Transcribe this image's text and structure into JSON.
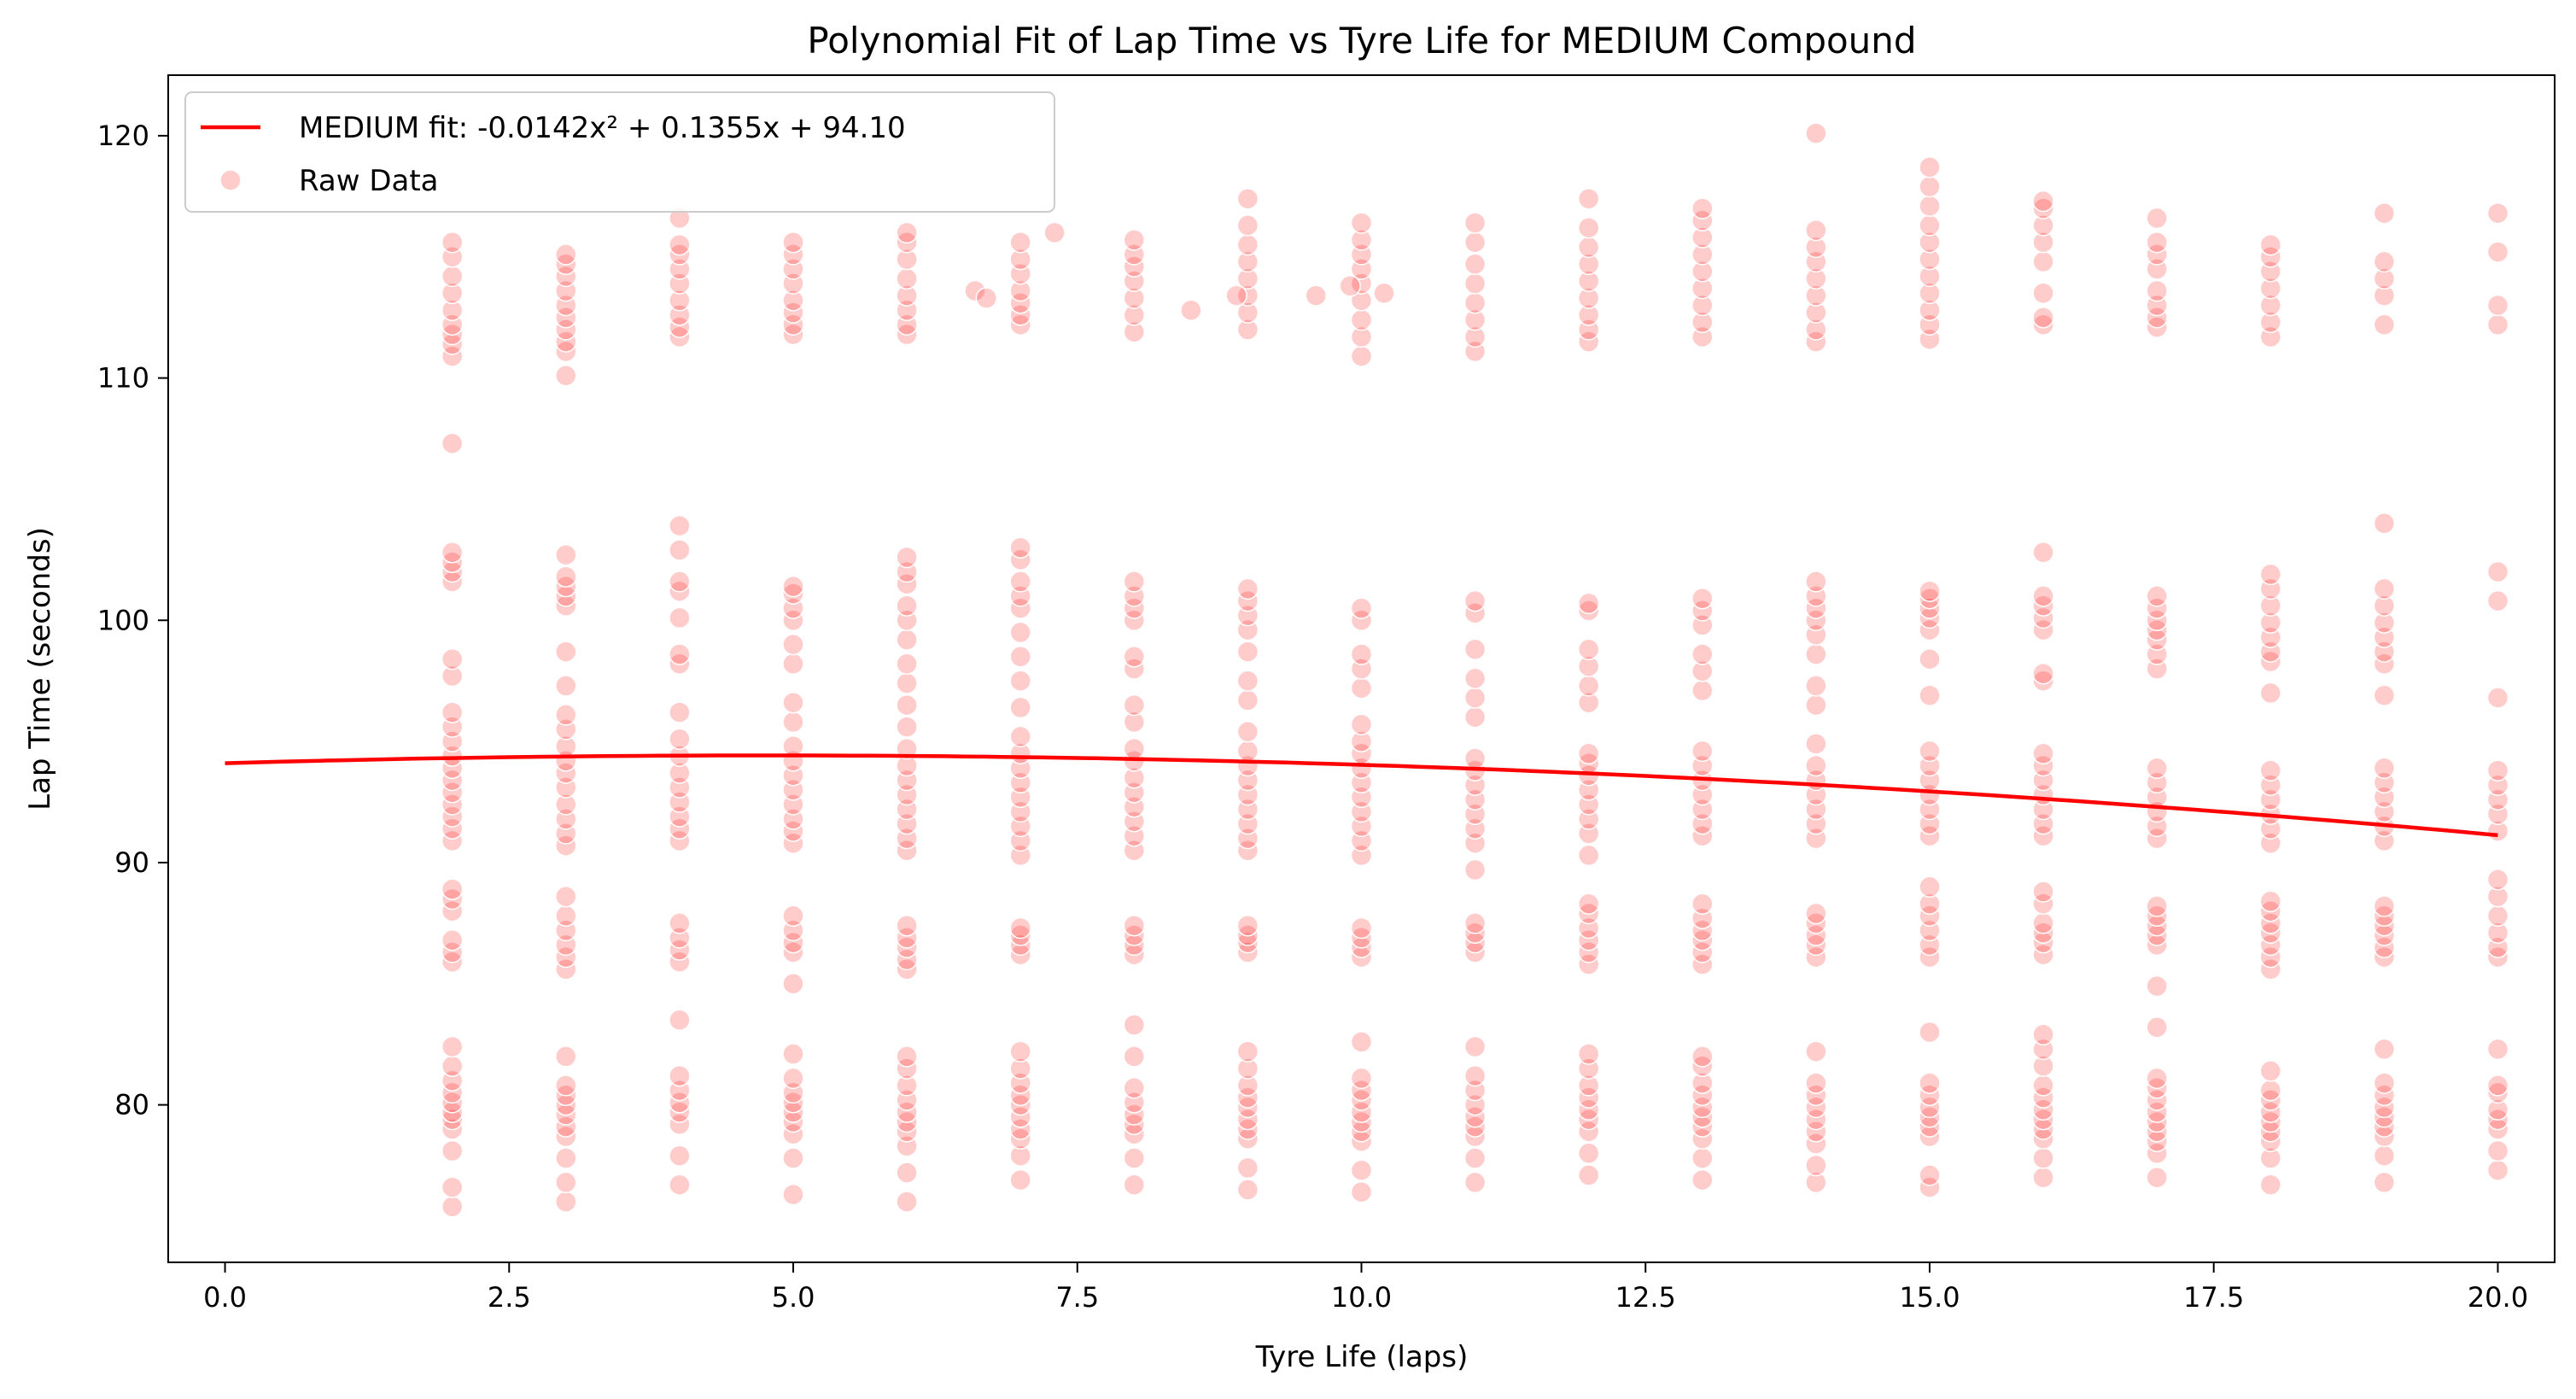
{
  "chart_data": {
    "type": "scatter",
    "title": "Polynomial Fit of Lap Time vs Tyre Life for MEDIUM Compound",
    "xlabel": "Tyre Life (laps)",
    "ylabel": "Lap Time (seconds)",
    "xlim": [
      -0.5,
      20.5
    ],
    "ylim": [
      73.5,
      122.5
    ],
    "xticks": [
      0.0,
      2.5,
      5.0,
      7.5,
      10.0,
      12.5,
      15.0,
      17.5,
      20.0
    ],
    "xtick_labels": [
      "0.0",
      "2.5",
      "5.0",
      "7.5",
      "10.0",
      "12.5",
      "15.0",
      "17.5",
      "20.0"
    ],
    "yticks": [
      80,
      90,
      100,
      110,
      120
    ],
    "ytick_labels": [
      "80",
      "90",
      "100",
      "110",
      "120"
    ],
    "grid": false,
    "legend_position": "top-left",
    "colors": {
      "fit": "#ff0000",
      "raw": "#ff0000"
    },
    "fit": {
      "name": "MEDIUM fit: -0.0142x² + 0.1355x + 94.10",
      "coefficients": [
        -0.0142,
        0.1355,
        94.1
      ],
      "x_range": [
        0,
        20
      ]
    },
    "raw": {
      "name": "Raw Data",
      "columns": [
        {
          "x": 2,
          "y": [
            75.8,
            76.6,
            78.1,
            79.0,
            79.4,
            79.7,
            80.1,
            80.5,
            81.0,
            81.6,
            82.4,
            85.9,
            86.3,
            86.8,
            88.0,
            88.5,
            88.9,
            90.9,
            91.4,
            91.9,
            92.4,
            92.9,
            93.4,
            93.9,
            94.4,
            95.0,
            95.6,
            96.2,
            97.7,
            98.4,
            101.6,
            102.0,
            102.4,
            102.8,
            107.3,
            110.9,
            111.4,
            111.8,
            112.2,
            112.8,
            113.5,
            114.2,
            115.0,
            115.6
          ]
        },
        {
          "x": 3,
          "y": [
            76.0,
            76.8,
            77.8,
            78.7,
            79.1,
            79.6,
            80.0,
            80.4,
            80.8,
            82.0,
            85.6,
            86.1,
            86.6,
            87.2,
            87.8,
            88.6,
            90.7,
            91.2,
            91.8,
            92.4,
            93.1,
            93.7,
            94.2,
            94.8,
            95.5,
            96.1,
            97.3,
            98.7,
            100.6,
            101.0,
            101.4,
            101.8,
            102.7,
            110.1,
            111.1,
            111.5,
            112.0,
            112.5,
            113.0,
            113.6,
            114.2,
            114.7,
            115.1
          ]
        },
        {
          "x": 4,
          "y": [
            76.7,
            77.9,
            79.2,
            79.7,
            80.1,
            80.6,
            81.2,
            83.5,
            85.9,
            86.4,
            86.9,
            87.5,
            90.9,
            91.4,
            91.9,
            92.5,
            93.1,
            93.7,
            94.4,
            95.1,
            96.2,
            98.2,
            98.6,
            100.1,
            101.2,
            101.6,
            102.9,
            103.9,
            111.7,
            112.1,
            112.6,
            113.2,
            113.9,
            114.5,
            115.1,
            115.5,
            116.6
          ]
        },
        {
          "x": 5,
          "y": [
            76.3,
            77.8,
            78.8,
            79.3,
            79.7,
            80.1,
            80.5,
            81.1,
            82.1,
            85.0,
            86.3,
            86.7,
            87.2,
            87.8,
            90.8,
            91.3,
            91.8,
            92.4,
            93.0,
            93.6,
            94.2,
            94.8,
            95.8,
            96.6,
            98.2,
            99.0,
            100.0,
            100.5,
            101.1,
            101.4,
            111.8,
            112.2,
            112.7,
            113.2,
            113.9,
            114.5,
            115.1,
            115.6
          ]
        },
        {
          "x": 6,
          "y": [
            76.0,
            77.2,
            78.3,
            78.9,
            79.3,
            79.7,
            80.2,
            80.8,
            81.5,
            82.0,
            85.6,
            86.0,
            86.5,
            86.9,
            87.4,
            90.5,
            91.0,
            91.6,
            92.2,
            92.8,
            93.4,
            94.0,
            94.7,
            95.6,
            96.5,
            97.4,
            98.2,
            99.2,
            100.0,
            100.6,
            101.5,
            102.0,
            102.6,
            111.8,
            112.2,
            112.8,
            113.4,
            114.1,
            114.9,
            115.6,
            116.0
          ]
        },
        {
          "x": 7,
          "y": [
            76.9,
            77.9,
            78.6,
            79.0,
            79.5,
            80.0,
            80.4,
            80.9,
            81.5,
            82.2,
            86.2,
            86.6,
            87.0,
            87.3,
            90.3,
            90.9,
            91.5,
            92.1,
            92.7,
            93.3,
            93.9,
            94.5,
            95.2,
            96.4,
            97.5,
            98.5,
            99.5,
            100.5,
            101.0,
            101.6,
            102.5,
            103.0,
            112.2,
            112.6,
            113.1,
            113.6,
            114.3,
            114.9,
            115.6
          ]
        },
        {
          "x": 8,
          "y": [
            76.7,
            77.8,
            78.8,
            79.2,
            79.6,
            80.1,
            80.7,
            82.0,
            83.3,
            86.2,
            86.6,
            87.0,
            87.4,
            90.5,
            91.1,
            91.7,
            92.3,
            92.9,
            93.5,
            94.2,
            94.7,
            95.8,
            96.5,
            98.0,
            98.5,
            100.0,
            100.5,
            101.0,
            101.6,
            111.9,
            112.6,
            113.3,
            114.0,
            114.6,
            115.1,
            115.7
          ]
        },
        {
          "x": 9,
          "y": [
            76.5,
            77.4,
            78.6,
            79.0,
            79.4,
            79.9,
            80.3,
            80.8,
            81.5,
            82.2,
            86.3,
            86.7,
            87.0,
            87.4,
            90.5,
            91.0,
            91.6,
            92.2,
            92.8,
            93.4,
            94.0,
            94.6,
            95.4,
            96.7,
            97.5,
            98.7,
            99.6,
            100.2,
            100.8,
            101.3,
            112.0,
            112.7,
            113.4,
            114.1,
            114.8,
            115.5,
            116.3,
            117.4
          ]
        },
        {
          "x": 10,
          "y": [
            76.4,
            77.3,
            78.5,
            78.9,
            79.3,
            79.7,
            80.2,
            80.6,
            81.1,
            82.6,
            86.1,
            86.5,
            86.9,
            87.3,
            90.3,
            90.9,
            91.5,
            92.1,
            92.7,
            93.3,
            93.9,
            94.5,
            95.0,
            95.7,
            97.2,
            98.0,
            98.6,
            100.0,
            100.5,
            110.9,
            111.7,
            112.4,
            113.2,
            113.9,
            114.5,
            115.1,
            115.7,
            116.4
          ]
        },
        {
          "x": 11,
          "y": [
            76.8,
            77.8,
            78.7,
            79.1,
            79.5,
            80.0,
            80.6,
            81.2,
            82.4,
            86.3,
            86.7,
            87.1,
            87.5,
            89.7,
            90.8,
            91.4,
            92.0,
            92.6,
            93.2,
            93.8,
            94.3,
            96.0,
            96.8,
            97.6,
            98.8,
            100.3,
            100.8,
            111.1,
            111.7,
            112.4,
            113.1,
            113.9,
            114.7,
            115.6,
            116.4
          ]
        },
        {
          "x": 12,
          "y": [
            77.1,
            78.0,
            78.9,
            79.4,
            79.8,
            80.3,
            80.8,
            81.5,
            82.1,
            85.8,
            86.3,
            86.8,
            87.3,
            87.9,
            88.3,
            90.3,
            91.2,
            91.8,
            92.4,
            93.0,
            93.6,
            94.1,
            94.5,
            96.6,
            97.3,
            98.1,
            98.8,
            100.4,
            100.7,
            111.5,
            112.0,
            112.6,
            113.3,
            114.0,
            114.7,
            115.4,
            116.2,
            117.4
          ]
        },
        {
          "x": 13,
          "y": [
            76.9,
            77.8,
            78.6,
            79.1,
            79.5,
            79.9,
            80.4,
            80.9,
            81.6,
            82.0,
            85.8,
            86.3,
            86.8,
            87.2,
            87.7,
            88.3,
            91.1,
            91.6,
            92.2,
            92.8,
            93.4,
            94.0,
            94.6,
            97.1,
            97.9,
            98.6,
            99.8,
            100.4,
            100.9,
            111.7,
            112.3,
            113.0,
            113.7,
            114.4,
            115.1,
            115.8,
            116.5,
            117.0
          ]
        },
        {
          "x": 14,
          "y": [
            76.8,
            77.5,
            78.4,
            78.9,
            79.4,
            79.9,
            80.4,
            80.9,
            82.2,
            86.1,
            86.6,
            87.0,
            87.5,
            87.9,
            91.0,
            91.6,
            92.2,
            92.8,
            93.4,
            94.0,
            94.9,
            96.5,
            97.3,
            98.6,
            99.4,
            100.0,
            100.5,
            101.0,
            101.6,
            111.5,
            112.0,
            112.7,
            113.4,
            114.1,
            114.8,
            115.4,
            116.1,
            120.1
          ]
        },
        {
          "x": 15,
          "y": [
            76.6,
            77.1,
            78.7,
            79.1,
            79.5,
            79.9,
            80.4,
            80.9,
            83.0,
            86.1,
            86.6,
            87.2,
            87.8,
            88.3,
            89.0,
            91.1,
            91.6,
            92.2,
            92.8,
            93.4,
            94.0,
            94.6,
            96.9,
            98.4,
            99.6,
            100.1,
            100.5,
            100.9,
            101.2,
            111.6,
            112.2,
            112.8,
            113.5,
            114.2,
            114.9,
            115.6,
            116.3,
            117.1,
            117.9,
            118.7
          ]
        },
        {
          "x": 16,
          "y": [
            77.0,
            77.8,
            78.6,
            79.0,
            79.4,
            79.8,
            80.3,
            80.8,
            81.6,
            82.3,
            82.9,
            86.2,
            86.7,
            87.1,
            87.5,
            88.3,
            88.8,
            91.1,
            91.6,
            92.2,
            92.8,
            93.4,
            94.0,
            94.5,
            97.5,
            97.8,
            99.6,
            100.1,
            100.6,
            101.0,
            102.8,
            112.2,
            112.5,
            113.5,
            114.8,
            115.6,
            116.3,
            117.0,
            117.3
          ]
        },
        {
          "x": 17,
          "y": [
            77.0,
            78.0,
            78.5,
            78.9,
            79.3,
            79.7,
            80.2,
            80.7,
            81.1,
            83.2,
            84.9,
            86.6,
            87.0,
            87.4,
            87.8,
            88.2,
            91.0,
            91.5,
            92.1,
            92.7,
            93.3,
            93.9,
            98.0,
            98.6,
            99.2,
            99.6,
            100.0,
            100.5,
            101.0,
            112.1,
            112.5,
            113.0,
            113.6,
            114.5,
            115.1,
            115.6,
            116.6
          ]
        },
        {
          "x": 18,
          "y": [
            76.7,
            77.8,
            78.5,
            78.9,
            79.3,
            79.7,
            80.2,
            80.6,
            81.4,
            85.6,
            86.1,
            86.6,
            87.1,
            87.5,
            88.0,
            88.4,
            90.8,
            91.4,
            92.0,
            92.6,
            93.2,
            93.8,
            97.0,
            98.3,
            98.7,
            99.3,
            99.9,
            100.6,
            101.3,
            101.9,
            111.7,
            112.3,
            113.0,
            113.7,
            114.4,
            115.0,
            115.5
          ]
        },
        {
          "x": 19,
          "y": [
            76.8,
            77.9,
            78.7,
            79.1,
            79.5,
            79.9,
            80.4,
            80.9,
            82.3,
            86.1,
            86.5,
            87.0,
            87.4,
            87.8,
            88.2,
            90.9,
            91.5,
            92.1,
            92.7,
            93.3,
            93.9,
            96.9,
            98.2,
            98.7,
            99.3,
            99.9,
            100.6,
            101.3,
            104.0,
            112.2,
            113.4,
            114.1,
            114.8,
            116.8
          ]
        },
        {
          "x": 20,
          "y": [
            77.3,
            78.1,
            79.0,
            79.4,
            79.8,
            80.5,
            80.8,
            82.3,
            86.1,
            86.5,
            87.1,
            87.8,
            88.6,
            89.3,
            91.3,
            92.0,
            92.6,
            93.2,
            93.8,
            96.8,
            100.8,
            102.0,
            112.2,
            113.0,
            115.2,
            116.8
          ]
        }
      ],
      "extra_points": [
        {
          "x": 6.6,
          "y": 113.6
        },
        {
          "x": 6.7,
          "y": 113.3
        },
        {
          "x": 7.3,
          "y": 116.0
        },
        {
          "x": 8.5,
          "y": 112.8
        },
        {
          "x": 8.9,
          "y": 113.4
        },
        {
          "x": 9.6,
          "y": 113.4
        },
        {
          "x": 9.9,
          "y": 113.8
        },
        {
          "x": 10.2,
          "y": 113.5
        }
      ]
    }
  }
}
